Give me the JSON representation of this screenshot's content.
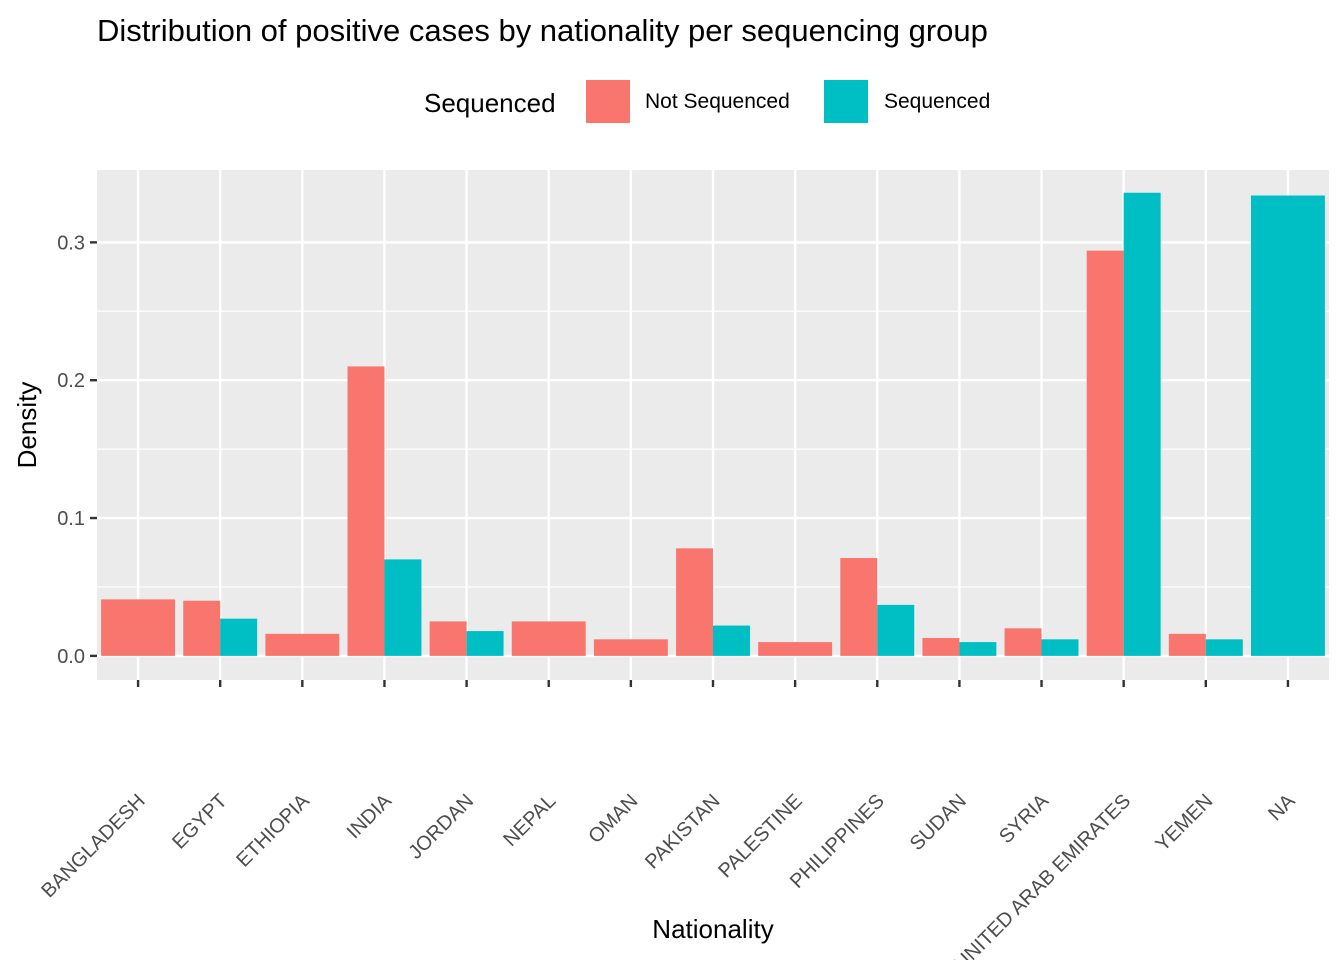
{
  "chart_data": {
    "type": "bar",
    "title": "Distribution of positive cases by nationality per sequencing group",
    "xlabel": "Nationality",
    "ylabel": "Density",
    "ylim": [
      -0.0175,
      0.3525
    ],
    "yticks": [
      0.0,
      0.1,
      0.2,
      0.3
    ],
    "ytick_labels": [
      "0.0",
      "0.1",
      "0.2",
      "0.3"
    ],
    "grid": true,
    "legend": {
      "title": "Sequenced",
      "placement": "top",
      "entries": [
        "Not Sequenced",
        "Sequenced"
      ]
    },
    "categories": [
      "BANGLADESH",
      "EGYPT",
      "ETHIOPIA",
      "INDIA",
      "JORDAN",
      "NEPAL",
      "OMAN",
      "PAKISTAN",
      "PALESTINE",
      "PHILIPPINES",
      "SUDAN",
      "SYRIA",
      "UNITED ARAB EMIRATES",
      "YEMEN",
      "NA"
    ],
    "series": [
      {
        "name": "Not Sequenced",
        "color": "#F8766D",
        "values": [
          0.041,
          0.04,
          0.016,
          0.21,
          0.025,
          0.025,
          0.012,
          0.078,
          0.01,
          0.071,
          0.013,
          0.02,
          0.294,
          0.016,
          null
        ]
      },
      {
        "name": "Sequenced",
        "color": "#00BFC4",
        "values": [
          null,
          0.027,
          null,
          0.07,
          0.018,
          null,
          null,
          0.022,
          null,
          0.037,
          0.01,
          0.012,
          0.336,
          0.012,
          0.334
        ]
      }
    ]
  }
}
